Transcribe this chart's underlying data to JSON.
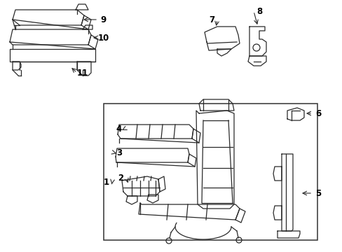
{
  "bg_color": "#ffffff",
  "line_color": "#2a2a2a",
  "lw": 0.9,
  "figsize": [
    4.89,
    3.6
  ],
  "dpi": 100
}
